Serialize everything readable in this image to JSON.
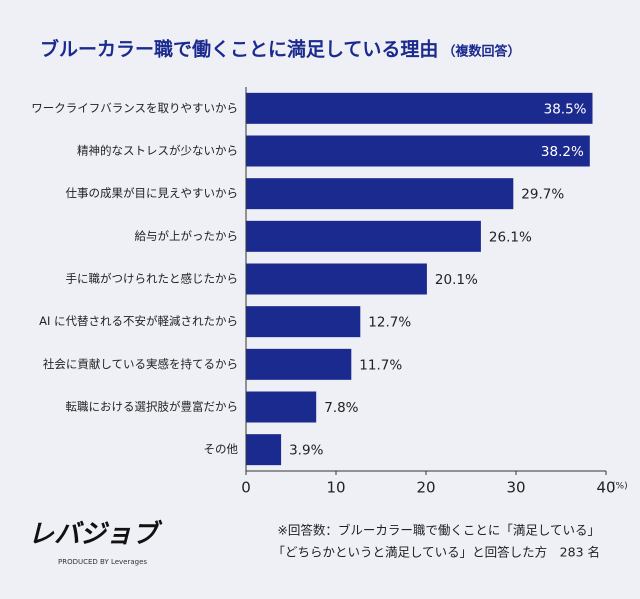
{
  "chart_data": {
    "type": "bar",
    "orientation": "horizontal",
    "title": "ブルーカラー職で働くことに満足している理由",
    "subtitle": "（複数回答）",
    "categories": [
      "ワークライフバランスを取りやすいから",
      "精神的なストレスが少ないから",
      "仕事の成果が目に見えやすいから",
      "給与が上がったから",
      "手に職がつけられたと感じたから",
      "AI に代替される不安が軽減されたから",
      "社会に貢献している実感を持てるから",
      "転職における選択肢が豊富だから",
      "その他"
    ],
    "values": [
      38.5,
      38.2,
      29.7,
      26.1,
      20.1,
      12.7,
      11.7,
      7.8,
      3.9
    ],
    "value_labels": [
      "38.5%",
      "38.2%",
      "29.7%",
      "26.1%",
      "20.1%",
      "12.7%",
      "11.7%",
      "7.8%",
      "3.9%"
    ],
    "color": "#1b2a8f",
    "xlim": [
      0,
      40
    ],
    "xticks": [
      0,
      10,
      20,
      30,
      40
    ],
    "x_unit": "(%)",
    "footnote": [
      "※回答数：ブルーカラー職で働くことに「満足している」",
      "「どちらかというと満足している」と回答した方　283 名"
    ],
    "logo": {
      "name": "レバジョブ",
      "tagline": "PRODUCED BY Leverages"
    }
  }
}
